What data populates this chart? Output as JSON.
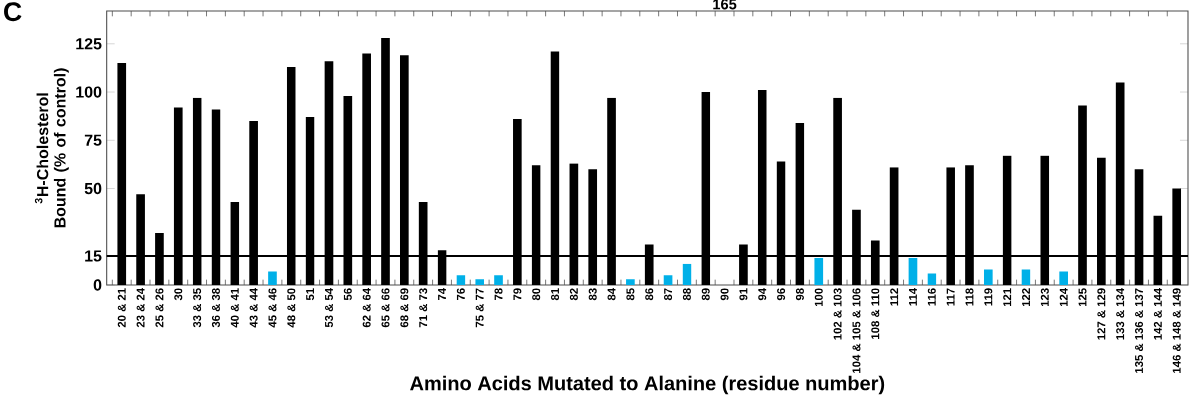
{
  "chart_data": {
    "type": "bar",
    "title": "C",
    "xlabel": "Amino Acids Mutated to Alanine (residue number)",
    "ylabel": "$^{3}$H-Cholesterol Bound (% of control)",
    "categories": [
      "20 & 21",
      "23 & 24",
      "25 & 26",
      "30",
      "33 & 35",
      "36 & 38",
      "40 & 41",
      "43 & 44",
      "45 & 46",
      "48 & 50",
      "51",
      "53 & 54",
      "56",
      "62 & 64",
      "65 & 66",
      "68 & 69",
      "71 & 73",
      "74",
      "76",
      "75 & 77",
      "78",
      "79",
      "80",
      "81",
      "82",
      "83",
      "84",
      "85",
      "86",
      "87",
      "88",
      "89",
      "90",
      "91",
      "94",
      "96",
      "98",
      "100",
      "102 & 103",
      "104 & 105 & 106",
      "108 & 110",
      "112",
      "114",
      "116",
      "117",
      "118",
      "119",
      "121",
      "122",
      "123",
      "124",
      "125",
      "127 & 129",
      "133 & 134",
      "135 & 136 & 137",
      "142 & 144",
      "146 & 148 & 149"
    ],
    "values": [
      115,
      47,
      27,
      92,
      97,
      91,
      43,
      85,
      7,
      113,
      87,
      116,
      98,
      120,
      128,
      119,
      43,
      18,
      5,
      3,
      5,
      86,
      62,
      121,
      63,
      60,
      97,
      3,
      21,
      5,
      11,
      100,
      null,
      21,
      101,
      64,
      84,
      14,
      97,
      39,
      23,
      61,
      14,
      6,
      61,
      62,
      8,
      67,
      8,
      67,
      7,
      93,
      66,
      105,
      60,
      36,
      50
    ],
    "colors": [
      "#000000",
      "#000000",
      "#000000",
      "#000000",
      "#000000",
      "#000000",
      "#000000",
      "#000000",
      "#00b0e8",
      "#000000",
      "#000000",
      "#000000",
      "#000000",
      "#000000",
      "#000000",
      "#000000",
      "#000000",
      "#000000",
      "#00b0e8",
      "#00b0e8",
      "#00b0e8",
      "#000000",
      "#000000",
      "#000000",
      "#000000",
      "#000000",
      "#000000",
      "#00b0e8",
      "#000000",
      "#00b0e8",
      "#00b0e8",
      "#000000",
      "#000000",
      "#000000",
      "#000000",
      "#000000",
      "#000000",
      "#00b0e8",
      "#000000",
      "#000000",
      "#000000",
      "#000000",
      "#00b0e8",
      "#00b0e8",
      "#000000",
      "#000000",
      "#00b0e8",
      "#000000",
      "#00b0e8",
      "#000000",
      "#00b0e8",
      "#000000",
      "#000000",
      "#000000",
      "#000000",
      "#000000",
      "#000000"
    ],
    "value_labels": [
      null,
      null,
      null,
      null,
      null,
      null,
      null,
      null,
      null,
      null,
      null,
      null,
      null,
      null,
      null,
      null,
      null,
      null,
      null,
      null,
      null,
      null,
      null,
      null,
      null,
      null,
      null,
      null,
      null,
      null,
      null,
      null,
      "165",
      null,
      null,
      null,
      null,
      null,
      null,
      null,
      null,
      null,
      null,
      null,
      null,
      null,
      null,
      null,
      null,
      null,
      null,
      null,
      null,
      null,
      null,
      null,
      null
    ],
    "ylim": [
      0,
      142
    ],
    "yticks": [
      0,
      15,
      50,
      75,
      100,
      125
    ],
    "ref_lines": [
      {
        "axis": "y",
        "value": 15,
        "color": "#000000"
      }
    ],
    "grid": false
  }
}
